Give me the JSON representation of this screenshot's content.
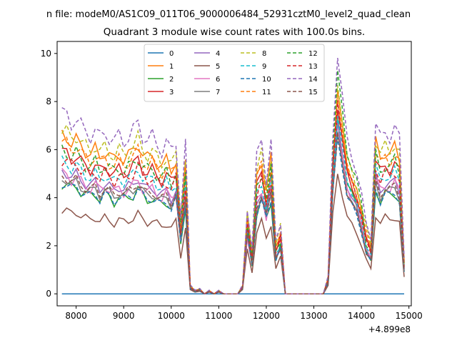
{
  "figure": {
    "title_top": "n file: modeM0/AS1C09_011T06_9000006484_52931cztM0_level2_quad_clean",
    "title": "Quadrant 3 module wise count rates with 100.0s bins.",
    "x_offset_label": "+4.899e8"
  },
  "chart_data": {
    "type": "line",
    "title": "Quadrant 3 module wise count rates with 100.0s bins.",
    "xlabel": "",
    "ylabel": "",
    "x_offset": 489900000,
    "xlim": [
      7600,
      15050
    ],
    "ylim": [
      -0.5,
      10.5
    ],
    "xticks": [
      8000,
      9000,
      10000,
      11000,
      12000,
      13000,
      14000,
      15000
    ],
    "yticks": [
      0,
      2,
      4,
      6,
      8,
      10
    ],
    "legend_position": "upper center",
    "grid": false,
    "series": [
      {
        "name": "0",
        "color": "#1f77b4",
        "dash": false,
        "level": 0.0,
        "scale": 0.0
      },
      {
        "name": "1",
        "color": "#ff7f0e",
        "dash": false,
        "level": 6.6,
        "scale": 0.84
      },
      {
        "name": "2",
        "color": "#2ca02c",
        "dash": false,
        "level": 4.6,
        "scale": 0.72
      },
      {
        "name": "3",
        "color": "#d62728",
        "dash": false,
        "level": 5.9,
        "scale": 0.78
      },
      {
        "name": "4",
        "color": "#9467bd",
        "dash": false,
        "level": 5.1,
        "scale": 0.7
      },
      {
        "name": "5",
        "color": "#8c564b",
        "dash": false,
        "level": 3.5,
        "scale": 0.5
      },
      {
        "name": "6",
        "color": "#e377c2",
        "dash": false,
        "level": 5.0,
        "scale": 0.68
      },
      {
        "name": "7",
        "color": "#7f7f7f",
        "dash": false,
        "level": 4.8,
        "scale": 0.66
      },
      {
        "name": "8",
        "color": "#bcbd22",
        "dash": true,
        "level": 6.8,
        "scale": 0.88
      },
      {
        "name": "9",
        "color": "#17becf",
        "dash": true,
        "level": 5.5,
        "scale": 0.74
      },
      {
        "name": "10",
        "color": "#1f77b4",
        "dash": true,
        "level": 4.6,
        "scale": 0.64
      },
      {
        "name": "11",
        "color": "#ff7f0e",
        "dash": true,
        "level": 6.3,
        "scale": 0.82
      },
      {
        "name": "12",
        "color": "#2ca02c",
        "dash": true,
        "level": 6.0,
        "scale": 0.92
      },
      {
        "name": "13",
        "color": "#d62728",
        "dash": true,
        "level": 5.6,
        "scale": 0.8
      },
      {
        "name": "14",
        "color": "#9467bd",
        "dash": true,
        "level": 7.5,
        "scale": 1.0
      },
      {
        "name": "15",
        "color": "#8c564b",
        "dash": true,
        "level": 4.9,
        "scale": 0.66
      }
    ],
    "shape": {
      "x": [
        7700,
        7800,
        7900,
        8000,
        8100,
        8200,
        8300,
        8400,
        8500,
        8600,
        8700,
        8800,
        8900,
        9000,
        9100,
        9200,
        9300,
        9400,
        9500,
        9600,
        9700,
        9800,
        9900,
        10000,
        10100,
        10200,
        10300,
        10400,
        10500,
        10600,
        10700,
        10800,
        10900,
        11000,
        11100,
        11200,
        11300,
        11400,
        11500,
        11600,
        11700,
        11800,
        11900,
        12000,
        12100,
        12200,
        12300,
        12400,
        12500,
        12600,
        12700,
        12800,
        12900,
        13000,
        13100,
        13200,
        13300,
        13400,
        13500,
        13600,
        13700,
        13800,
        13900,
        14000,
        14100,
        14200,
        14300,
        14400,
        14500,
        14600,
        14700,
        14800,
        14900
      ],
      "y": [
        1.0,
        0.99,
        0.95,
        0.97,
        0.93,
        0.9,
        0.88,
        0.91,
        0.86,
        0.9,
        0.87,
        0.84,
        0.88,
        0.85,
        0.87,
        0.9,
        0.95,
        0.88,
        0.85,
        0.87,
        0.83,
        0.8,
        0.84,
        0.78,
        0.85,
        0.45,
        0.82,
        0.05,
        0.02,
        0.03,
        0.0,
        0.02,
        0.0,
        0.02,
        0.0,
        0.0,
        0.0,
        0.0,
        0.05,
        0.5,
        0.25,
        0.75,
        0.85,
        0.65,
        0.85,
        0.3,
        0.4,
        0.0,
        0.0,
        0.0,
        0.0,
        0.0,
        0.0,
        0.0,
        0.0,
        0.0,
        0.1,
        0.8,
        1.22,
        1.0,
        0.78,
        0.7,
        0.62,
        0.5,
        0.38,
        0.3,
        0.95,
        0.85,
        0.9,
        0.88,
        0.92,
        0.85,
        0.2
      ]
    }
  }
}
